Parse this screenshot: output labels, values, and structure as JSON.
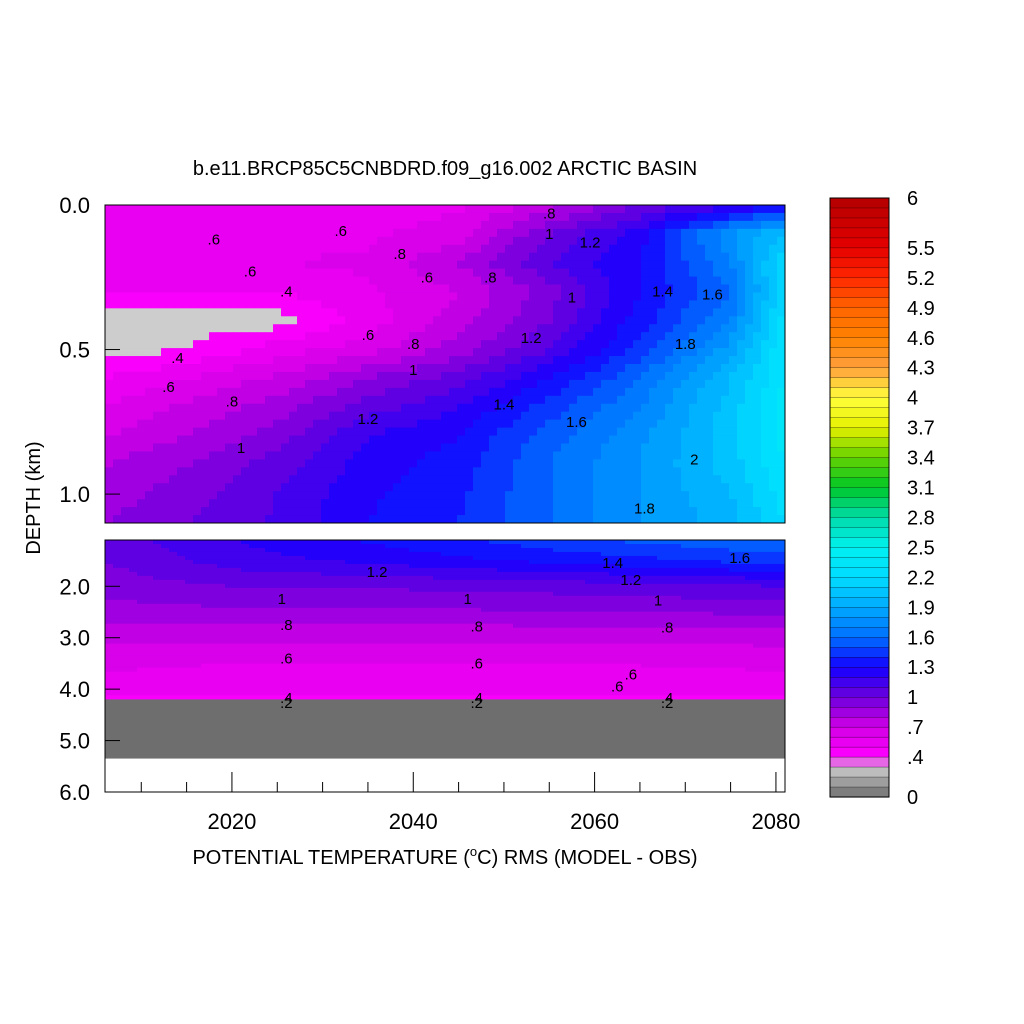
{
  "chart_data": {
    "type": "heatmap",
    "title": "b.e11.BRCP85C5CNBDRD.f09_g16.002 ARCTIC BASIN",
    "xlabel": "POTENTIAL TEMPERATURE (",
    "xlabel_degree": "o",
    "xlabel_rest": "C) RMS (MODEL - OBS)",
    "ylabel": "DEPTH (km)",
    "x_ticks": [
      "2020",
      "2040",
      "2060",
      "2080"
    ],
    "x_tick_values": [
      2020,
      2040,
      2060,
      2080
    ],
    "xlim": [
      2006,
      2081
    ],
    "upper_panel": {
      "ylim": [
        0.0,
        1.1
      ],
      "y_ticks": [
        "0.0",
        "0.5",
        "1.0"
      ],
      "y_tick_values": [
        0.0,
        0.5,
        1.0
      ]
    },
    "lower_panel": {
      "ylim": [
        1.1,
        6.0
      ],
      "y_ticks": [
        "2.0",
        "3.0",
        "4.0",
        "5.0",
        "6.0"
      ],
      "y_tick_values": [
        2.0,
        3.0,
        4.0,
        5.0,
        6.0
      ]
    },
    "colorbar": {
      "labels": [
        "6",
        "5.5",
        "5.2",
        "4.9",
        "4.6",
        "4.3",
        "4",
        "3.7",
        "3.4",
        "3.1",
        "2.8",
        "2.5",
        "2.2",
        "1.9",
        "1.6",
        "1.3",
        "1",
        ".7",
        ".4",
        "0"
      ],
      "label_values": [
        6,
        5.5,
        5.2,
        4.9,
        4.6,
        4.3,
        4,
        3.7,
        3.4,
        3.1,
        2.8,
        2.5,
        2.2,
        1.9,
        1.6,
        1.3,
        1,
        0.7,
        0.4,
        0
      ]
    },
    "upper_grid": {
      "x": [
        2006,
        2015,
        2025,
        2035,
        2045,
        2055,
        2065,
        2075,
        2081
      ],
      "depth": [
        0.0,
        0.1,
        0.2,
        0.3,
        0.4,
        0.5,
        0.6,
        0.7,
        0.8,
        0.9,
        1.0,
        1.1
      ],
      "values": [
        [
          0.55,
          0.55,
          0.55,
          0.55,
          0.58,
          0.75,
          1.0,
          1.15,
          1.3
        ],
        [
          0.55,
          0.55,
          0.55,
          0.58,
          0.65,
          1.0,
          1.25,
          1.8,
          2.0
        ],
        [
          0.55,
          0.58,
          0.6,
          0.62,
          0.8,
          1.1,
          1.3,
          1.7,
          2.2
        ],
        [
          0.5,
          0.5,
          0.5,
          0.58,
          0.7,
          0.95,
          1.3,
          1.6,
          2.2
        ],
        [
          0.35,
          0.35,
          0.35,
          0.55,
          0.75,
          1.0,
          1.35,
          1.7,
          2.25
        ],
        [
          0.35,
          0.4,
          0.55,
          0.65,
          0.85,
          1.1,
          1.45,
          1.85,
          2.3
        ],
        [
          0.5,
          0.6,
          0.72,
          0.9,
          1.05,
          1.3,
          1.6,
          2.0,
          2.3
        ],
        [
          0.6,
          0.72,
          0.85,
          1.05,
          1.2,
          1.45,
          1.7,
          2.05,
          2.35
        ],
        [
          0.7,
          0.8,
          0.95,
          1.2,
          1.3,
          1.55,
          1.78,
          2.05,
          2.35
        ],
        [
          0.8,
          0.9,
          1.05,
          1.25,
          1.35,
          1.6,
          1.8,
          2.05,
          2.3
        ],
        [
          0.85,
          0.95,
          1.1,
          1.28,
          1.38,
          1.6,
          1.8,
          2.0,
          2.25
        ],
        [
          0.9,
          1.0,
          1.12,
          1.3,
          1.4,
          1.6,
          1.8,
          1.95,
          2.2
        ]
      ]
    },
    "lower_grid": {
      "x": [
        2006,
        2020,
        2040,
        2060,
        2081
      ],
      "depth": [
        1.1,
        1.5,
        2.0,
        2.5,
        3.0,
        3.5,
        4.0,
        4.2
      ],
      "values": [
        [
          1.05,
          1.2,
          1.35,
          1.5,
          1.6
        ],
        [
          1.0,
          1.15,
          1.25,
          1.35,
          1.45
        ],
        [
          0.95,
          1.0,
          1.02,
          1.05,
          1.1
        ],
        [
          0.85,
          0.88,
          0.88,
          0.9,
          0.92
        ],
        [
          0.72,
          0.72,
          0.72,
          0.72,
          0.74
        ],
        [
          0.62,
          0.6,
          0.6,
          0.6,
          0.62
        ],
        [
          0.55,
          0.55,
          0.55,
          0.55,
          0.55
        ],
        [
          0.45,
          0.45,
          0.45,
          0.45,
          0.45
        ]
      ],
      "bottom_band": {
        "depth": [
          4.2,
          5.35
        ],
        "value": 0
      }
    },
    "contour_labels": [
      {
        "panel": "upper",
        "text": ".6",
        "x": 2018,
        "depth": 0.12
      },
      {
        "panel": "upper",
        "text": ".6",
        "x": 2032,
        "depth": 0.09
      },
      {
        "panel": "upper",
        "text": ".6",
        "x": 2022,
        "depth": 0.23
      },
      {
        "panel": "upper",
        "text": ".8",
        "x": 2038.5,
        "depth": 0.17
      },
      {
        "panel": "upper",
        "text": ".6",
        "x": 2041.5,
        "depth": 0.25
      },
      {
        "panel": "upper",
        "text": ".8",
        "x": 2048.5,
        "depth": 0.25
      },
      {
        "panel": "upper",
        "text": ".8",
        "x": 2055,
        "depth": 0.03
      },
      {
        "panel": "upper",
        "text": "1",
        "x": 2055,
        "depth": 0.1
      },
      {
        "panel": "upper",
        "text": "1.2",
        "x": 2059.5,
        "depth": 0.13
      },
      {
        "panel": "upper",
        "text": ".4",
        "x": 2026,
        "depth": 0.3
      },
      {
        "panel": "upper",
        "text": "1",
        "x": 2057.5,
        "depth": 0.32
      },
      {
        "panel": "upper",
        "text": "1.4",
        "x": 2067.5,
        "depth": 0.3
      },
      {
        "panel": "upper",
        "text": "1.6",
        "x": 2073,
        "depth": 0.31
      },
      {
        "panel": "upper",
        "text": ".4",
        "x": 2014,
        "depth": 0.53
      },
      {
        "panel": "upper",
        "text": ".6",
        "x": 2035,
        "depth": 0.45
      },
      {
        "panel": "upper",
        "text": ".8",
        "x": 2040,
        "depth": 0.48
      },
      {
        "panel": "upper",
        "text": "1.2",
        "x": 2053,
        "depth": 0.46
      },
      {
        "panel": "upper",
        "text": "1.8",
        "x": 2070,
        "depth": 0.48
      },
      {
        "panel": "upper",
        "text": "1",
        "x": 2040,
        "depth": 0.57
      },
      {
        "panel": "upper",
        "text": ".6",
        "x": 2013,
        "depth": 0.63
      },
      {
        "panel": "upper",
        "text": ".8",
        "x": 2020,
        "depth": 0.68
      },
      {
        "panel": "upper",
        "text": "1.4",
        "x": 2050,
        "depth": 0.69
      },
      {
        "panel": "upper",
        "text": "1.2",
        "x": 2035,
        "depth": 0.74
      },
      {
        "panel": "upper",
        "text": "1.6",
        "x": 2058,
        "depth": 0.75
      },
      {
        "panel": "upper",
        "text": "1",
        "x": 2021,
        "depth": 0.84
      },
      {
        "panel": "upper",
        "text": "2",
        "x": 2071,
        "depth": 0.88
      },
      {
        "panel": "upper",
        "text": "1.8",
        "x": 2065.5,
        "depth": 1.05
      },
      {
        "panel": "lower",
        "text": "1.4",
        "x": 2062,
        "depth": 1.55
      },
      {
        "panel": "lower",
        "text": "1.6",
        "x": 2076,
        "depth": 1.45
      },
      {
        "panel": "lower",
        "text": "1.2",
        "x": 2036,
        "depth": 1.72
      },
      {
        "panel": "lower",
        "text": "1.2",
        "x": 2064,
        "depth": 1.88
      },
      {
        "panel": "lower",
        "text": "1",
        "x": 2025.5,
        "depth": 2.25
      },
      {
        "panel": "lower",
        "text": "1",
        "x": 2046,
        "depth": 2.25
      },
      {
        "panel": "lower",
        "text": "1",
        "x": 2067,
        "depth": 2.28
      },
      {
        "panel": "lower",
        "text": ".8",
        "x": 2026,
        "depth": 2.75
      },
      {
        "panel": "lower",
        "text": ".8",
        "x": 2047,
        "depth": 2.78
      },
      {
        "panel": "lower",
        "text": ".8",
        "x": 2068,
        "depth": 2.8
      },
      {
        "panel": "lower",
        "text": ".6",
        "x": 2026,
        "depth": 3.4
      },
      {
        "panel": "lower",
        "text": ".6",
        "x": 2047,
        "depth": 3.5
      },
      {
        "panel": "lower",
        "text": ".6",
        "x": 2064,
        "depth": 3.72
      },
      {
        "panel": "lower",
        "text": ".6",
        "x": 2062.5,
        "depth": 3.95
      },
      {
        "panel": "lower",
        "text": ".4",
        "x": 2026,
        "depth": 4.17
      },
      {
        "panel": "lower",
        "text": ".2",
        "x": 2026,
        "depth": 4.27
      },
      {
        "panel": "lower",
        "text": ".4",
        "x": 2047,
        "depth": 4.17
      },
      {
        "panel": "lower",
        "text": ".2",
        "x": 2047,
        "depth": 4.27
      },
      {
        "panel": "lower",
        "text": ".4",
        "x": 2068,
        "depth": 4.17
      },
      {
        "panel": "lower",
        "text": ".2",
        "x": 2068,
        "depth": 4.27
      }
    ]
  }
}
